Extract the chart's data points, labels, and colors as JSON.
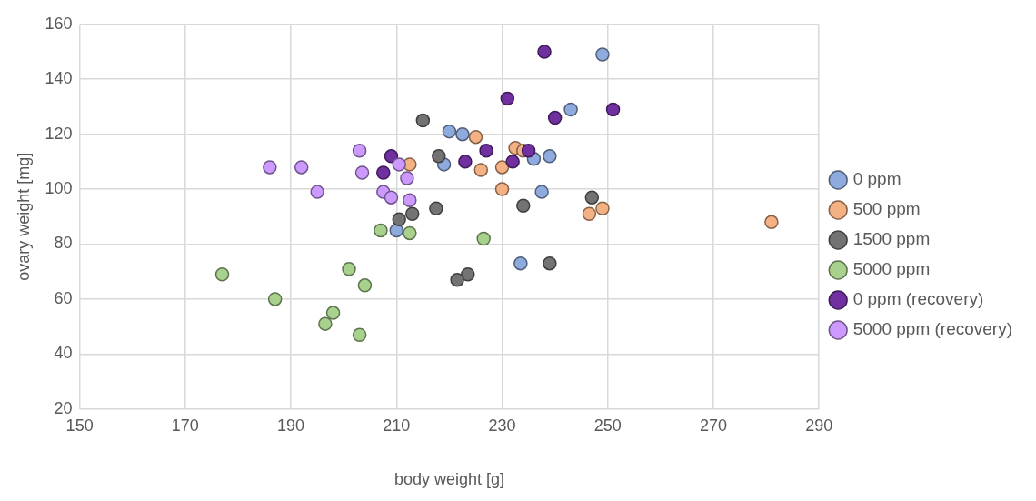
{
  "chart_data": {
    "type": "scatter",
    "xlabel": "body weight [g]",
    "ylabel": "ovary weight [mg]",
    "xlim": [
      150,
      290
    ],
    "xticks": [
      150,
      170,
      190,
      210,
      230,
      250,
      270,
      290
    ],
    "ylim": [
      20,
      160
    ],
    "yticks": [
      20,
      40,
      60,
      80,
      100,
      120,
      140,
      160
    ],
    "grid": true,
    "legend": "right",
    "marker": "circle",
    "series": [
      {
        "name": "0 ppm",
        "color": "#8faadc",
        "x": [
          249,
          243,
          220,
          222.5,
          219,
          236,
          239,
          237.5,
          233.5,
          210
        ],
        "values": [
          149,
          129,
          121,
          120,
          109,
          111,
          112,
          99,
          73,
          85
        ]
      },
      {
        "name": "500 ppm",
        "color": "#f4b183",
        "x": [
          225,
          212.5,
          226,
          230,
          232.5,
          234,
          230,
          246.5,
          249,
          281
        ],
        "values": [
          119,
          109,
          107,
          108,
          115,
          114,
          100,
          91,
          93,
          88
        ]
      },
      {
        "name": "1500 ppm",
        "color": "#737373",
        "x": [
          215,
          218,
          217.5,
          213,
          210.5,
          234,
          247,
          239,
          223.5,
          221.5
        ],
        "values": [
          125,
          112,
          93,
          91,
          89,
          94,
          97,
          73,
          69,
          67
        ]
      },
      {
        "name": "5000 ppm",
        "color": "#a9d18e",
        "x": [
          177,
          187,
          201,
          204,
          198,
          196.5,
          203,
          207,
          212.5,
          226.5
        ],
        "values": [
          69,
          60,
          71,
          65,
          55,
          51,
          47,
          85,
          84,
          82
        ]
      },
      {
        "name": "0 ppm (recovery)",
        "color": "#7030a0",
        "x": [
          238,
          231,
          240,
          251,
          209,
          207.5,
          223,
          227,
          232,
          235
        ],
        "values": [
          150,
          133,
          126,
          129,
          112,
          106,
          110,
          114,
          110,
          114
        ]
      },
      {
        "name": "5000 ppm (recovery)",
        "color": "#cc99ff",
        "x": [
          186,
          192,
          195,
          203,
          203.5,
          210.5,
          212,
          212.5,
          207.5,
          209
        ],
        "values": [
          108,
          108,
          99,
          114,
          106,
          109,
          104,
          96,
          99,
          97
        ]
      }
    ]
  }
}
